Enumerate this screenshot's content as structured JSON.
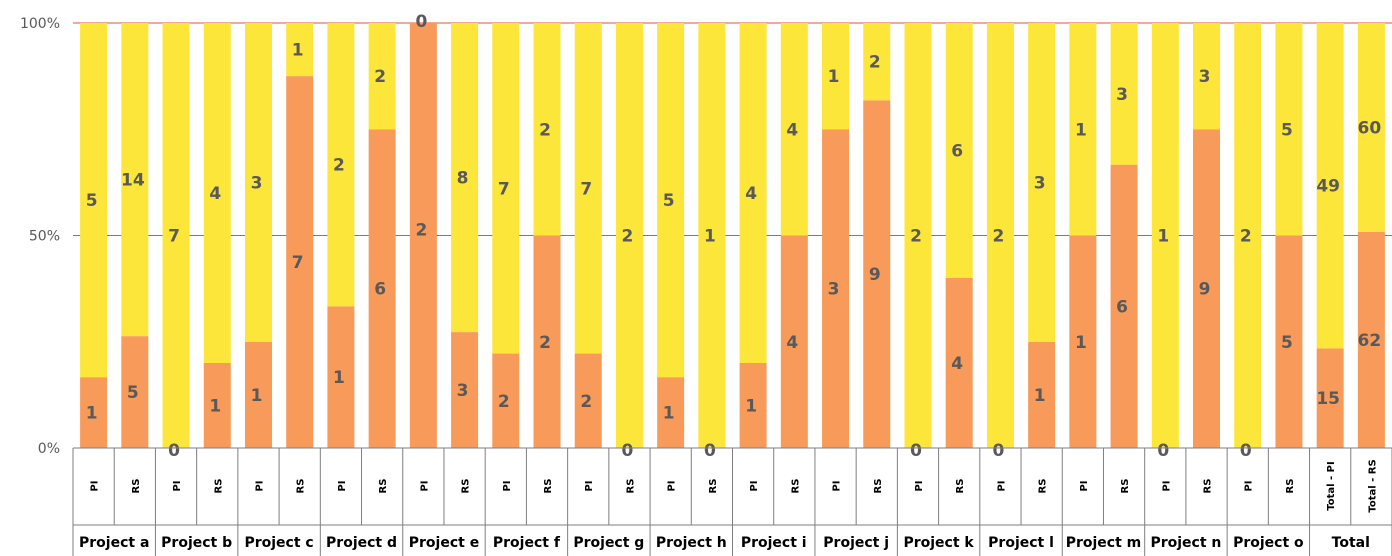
{
  "chart_data": {
    "type": "bar",
    "stacked": true,
    "normalized": true,
    "y_ticks": [
      "0%",
      "50%",
      "100%"
    ],
    "ylim": [
      0,
      100
    ],
    "grid": "horizontal at 50% and 100%",
    "legend": "none",
    "colors": {
      "bottom": "#F79A5A",
      "top": "#FCE63A",
      "grid": "#E8513A",
      "axis": "#7F7F7F",
      "text": "#595959"
    },
    "categories": [
      "PI",
      "RS",
      "PI",
      "RS",
      "PI",
      "RS",
      "PI",
      "RS",
      "PI",
      "RS",
      "PI",
      "RS",
      "PI",
      "RS",
      "PI",
      "RS",
      "PI",
      "RS",
      "PI",
      "RS",
      "PI",
      "RS",
      "PI",
      "RS",
      "PI",
      "RS",
      "PI",
      "RS",
      "PI",
      "RS",
      "Total - PI",
      "Total - RS"
    ],
    "groups": [
      "Project a",
      "Project b",
      "Project c",
      "Project d",
      "Project e",
      "Project f",
      "Project g",
      "Project h",
      "Project i",
      "Project j",
      "Project k",
      "Project l",
      "Project m",
      "Project n",
      "Project o",
      "Total"
    ],
    "series": [
      {
        "values": [
          1,
          5,
          0,
          1,
          1,
          7,
          1,
          6,
          2,
          3,
          2,
          2,
          2,
          0,
          1,
          0,
          1,
          4,
          3,
          9,
          0,
          4,
          0,
          1,
          1,
          6,
          0,
          9,
          0,
          5,
          15,
          62
        ]
      },
      {
        "values": [
          5,
          14,
          7,
          4,
          3,
          1,
          2,
          2,
          0,
          8,
          7,
          2,
          7,
          2,
          5,
          1,
          4,
          4,
          1,
          2,
          2,
          6,
          2,
          3,
          1,
          3,
          1,
          3,
          2,
          5,
          49,
          60
        ]
      }
    ]
  }
}
